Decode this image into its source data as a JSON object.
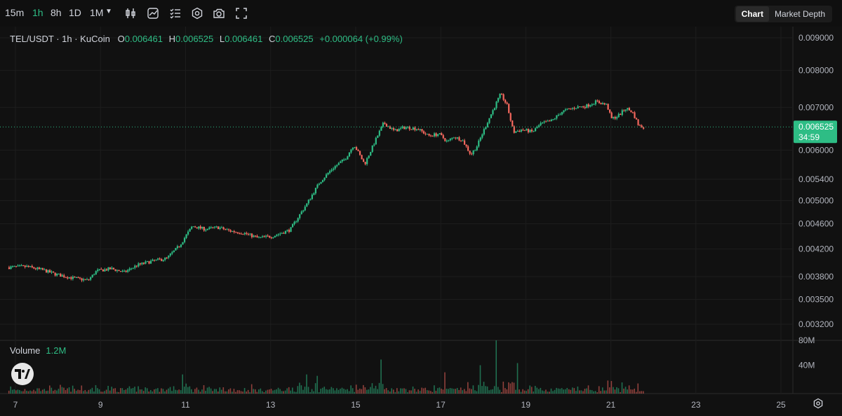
{
  "toolbar": {
    "timeframes": [
      "15m",
      "1h",
      "8h",
      "1D",
      "1M"
    ],
    "active_timeframe": "1h",
    "icons": [
      "candle-type-icon",
      "indicators-icon",
      "settings-list-icon",
      "gear-icon",
      "camera-icon",
      "fullscreen-icon"
    ],
    "view_tabs": [
      "Chart",
      "Market Depth"
    ],
    "active_view": "Chart"
  },
  "legend": {
    "symbol": "TEL/USDT · 1h · KuCoin",
    "o_label": "O",
    "o": "0.006461",
    "h_label": "H",
    "h": "0.006525",
    "l_label": "L",
    "l": "0.006461",
    "c_label": "C",
    "c": "0.006525",
    "change": "+0.000064 (+0.99%)"
  },
  "price_tag": {
    "price": "0.006525",
    "countdown": "34:59",
    "color": "#2ebd85"
  },
  "volume": {
    "label": "Volume",
    "value": "1.2M"
  },
  "colors": {
    "up": "#2ebd85",
    "down": "#f6685e",
    "background": "#111111"
  },
  "chart_data": {
    "type": "candlestick",
    "symbol": "TEL/USDT",
    "interval": "1h",
    "exchange": "KuCoin",
    "price_axis": {
      "scale": "log",
      "ticks": [
        0.0032,
        0.0035,
        0.0038,
        0.0042,
        0.0046,
        0.005,
        0.0054,
        0.006,
        0.007,
        0.008,
        0.009
      ],
      "tick_labels": [
        "0.003200",
        "0.003500",
        "0.003800",
        "0.004200",
        "0.004600",
        "0.005000",
        "0.005400",
        "0.006000",
        "0.007000",
        "0.008000",
        "0.009000"
      ]
    },
    "volume_axis": {
      "ticks": [
        40000000,
        80000000
      ],
      "tick_labels": [
        "40M",
        "80M"
      ]
    },
    "time_axis": {
      "tick_days": [
        7,
        9,
        11,
        13,
        15,
        17,
        19,
        21,
        23,
        25
      ],
      "tick_labels": [
        "7",
        "9",
        "11",
        "13",
        "15",
        "17",
        "19",
        "21",
        "23",
        "25"
      ],
      "first_day": 6.85,
      "last_day": 25.2
    },
    "price_path": [
      [
        6.85,
        0.00393
      ],
      [
        7.3,
        0.00394
      ],
      [
        7.7,
        0.00389
      ],
      [
        8.0,
        0.00383
      ],
      [
        8.4,
        0.00378
      ],
      [
        8.75,
        0.00375
      ],
      [
        8.95,
        0.00388
      ],
      [
        9.3,
        0.00391
      ],
      [
        9.6,
        0.00386
      ],
      [
        9.9,
        0.00396
      ],
      [
        10.2,
        0.00401
      ],
      [
        10.6,
        0.00406
      ],
      [
        10.9,
        0.00425
      ],
      [
        11.2,
        0.00456
      ],
      [
        11.5,
        0.00451
      ],
      [
        11.8,
        0.00454
      ],
      [
        12.1,
        0.00448
      ],
      [
        12.4,
        0.00445
      ],
      [
        12.75,
        0.00437
      ],
      [
        13.1,
        0.0044
      ],
      [
        13.5,
        0.0045
      ],
      [
        13.9,
        0.00495
      ],
      [
        14.2,
        0.00535
      ],
      [
        14.5,
        0.00562
      ],
      [
        14.8,
        0.00582
      ],
      [
        15.0,
        0.00612
      ],
      [
        15.25,
        0.0057
      ],
      [
        15.45,
        0.0061
      ],
      [
        15.7,
        0.00662
      ],
      [
        15.95,
        0.00643
      ],
      [
        16.2,
        0.00652
      ],
      [
        16.5,
        0.00648
      ],
      [
        16.75,
        0.00632
      ],
      [
        17.0,
        0.00636
      ],
      [
        17.2,
        0.00618
      ],
      [
        17.35,
        0.0063
      ],
      [
        17.55,
        0.00622
      ],
      [
        17.75,
        0.0059
      ],
      [
        17.9,
        0.0061
      ],
      [
        18.1,
        0.00655
      ],
      [
        18.3,
        0.007
      ],
      [
        18.45,
        0.00735
      ],
      [
        18.6,
        0.00705
      ],
      [
        18.75,
        0.0064
      ],
      [
        18.95,
        0.00646
      ],
      [
        19.2,
        0.00641
      ],
      [
        19.4,
        0.0066
      ],
      [
        19.65,
        0.00667
      ],
      [
        19.9,
        0.0069
      ],
      [
        20.2,
        0.007
      ],
      [
        20.45,
        0.00703
      ],
      [
        20.7,
        0.00715
      ],
      [
        20.95,
        0.00706
      ],
      [
        21.05,
        0.00672
      ],
      [
        21.2,
        0.00678
      ],
      [
        21.4,
        0.00698
      ],
      [
        21.55,
        0.00688
      ],
      [
        21.7,
        0.00655
      ],
      [
        21.8,
        0.00652
      ]
    ],
    "last_price": 0.006525,
    "volume_spikes": [
      [
        15.6,
        48000000
      ],
      [
        18.3,
        80000000
      ],
      [
        18.8,
        43000000
      ],
      [
        10.95,
        27000000
      ],
      [
        14.1,
        25000000
      ],
      [
        17.95,
        40000000
      ],
      [
        17.1,
        30000000
      ],
      [
        13.85,
        27000000
      ]
    ],
    "base_volume": 4000000
  }
}
